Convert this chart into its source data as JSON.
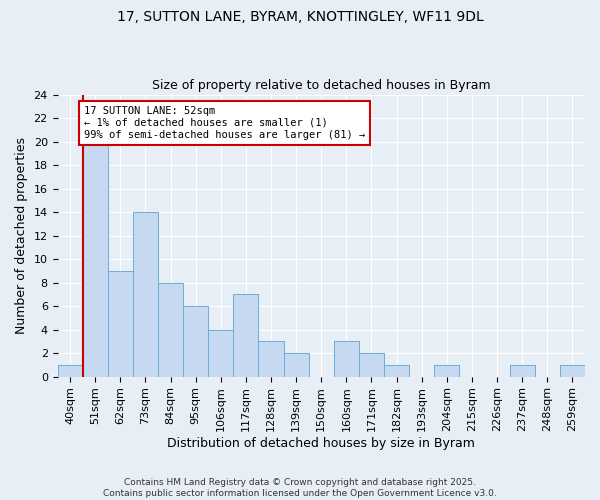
{
  "title_line1": "17, SUTTON LANE, BYRAM, KNOTTINGLEY, WF11 9DL",
  "title_line2": "Size of property relative to detached houses in Byram",
  "xlabel": "Distribution of detached houses by size in Byram",
  "ylabel": "Number of detached properties",
  "bar_labels": [
    "40sqm",
    "51sqm",
    "62sqm",
    "73sqm",
    "84sqm",
    "95sqm",
    "106sqm",
    "117sqm",
    "128sqm",
    "139sqm",
    "150sqm",
    "160sqm",
    "171sqm",
    "182sqm",
    "193sqm",
    "204sqm",
    "215sqm",
    "226sqm",
    "237sqm",
    "248sqm",
    "259sqm"
  ],
  "bar_values": [
    1,
    20,
    9,
    14,
    8,
    6,
    4,
    7,
    3,
    2,
    0,
    3,
    2,
    1,
    0,
    1,
    0,
    0,
    1,
    0,
    1
  ],
  "bar_color": "#c6d9f0",
  "bar_edge_color": "#6baed6",
  "vline_x": 0.5,
  "vline_color": "#cc0000",
  "annotation_title": "17 SUTTON LANE: 52sqm",
  "annotation_line1": "← 1% of detached houses are smaller (1)",
  "annotation_line2": "99% of semi-detached houses are larger (81) →",
  "annotation_box_color": "#cc0000",
  "ylim": [
    0,
    24
  ],
  "yticks": [
    0,
    2,
    4,
    6,
    8,
    10,
    12,
    14,
    16,
    18,
    20,
    22,
    24
  ],
  "footer_line1": "Contains HM Land Registry data © Crown copyright and database right 2025.",
  "footer_line2": "Contains public sector information licensed under the Open Government Licence v3.0.",
  "bg_color": "#e8eef5",
  "plot_bg_color": "#e8eef5",
  "grid_color": "#ffffff",
  "title1_fontsize": 10,
  "title2_fontsize": 9,
  "ylabel_fontsize": 9,
  "xlabel_fontsize": 9,
  "tick_fontsize": 8,
  "footer_fontsize": 6.5
}
